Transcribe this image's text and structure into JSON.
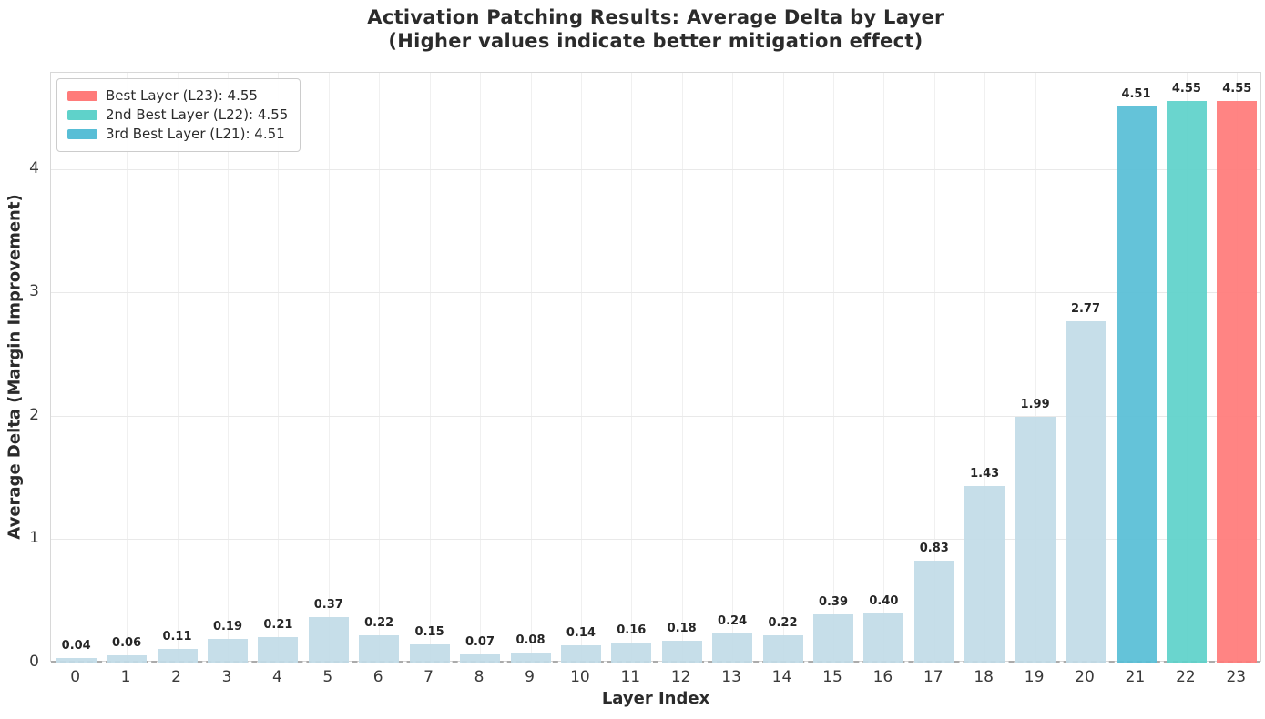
{
  "chart_data": {
    "type": "bar",
    "title": "Activation Patching Results: Average Delta by Layer",
    "subtitle": "(Higher values indicate better mitigation effect)",
    "xlabel": "Layer Index",
    "ylabel": "Average Delta (Margin Improvement)",
    "categories": [
      "0",
      "1",
      "2",
      "3",
      "4",
      "5",
      "6",
      "7",
      "8",
      "9",
      "10",
      "11",
      "12",
      "13",
      "14",
      "15",
      "16",
      "17",
      "18",
      "19",
      "20",
      "21",
      "22",
      "23"
    ],
    "values": [
      0.04,
      0.06,
      0.11,
      0.19,
      0.21,
      0.37,
      0.22,
      0.15,
      0.07,
      0.08,
      0.14,
      0.16,
      0.18,
      0.24,
      0.22,
      0.39,
      0.4,
      0.83,
      1.43,
      1.99,
      2.77,
      4.51,
      4.55,
      4.55
    ],
    "value_labels": [
      "0.04",
      "0.06",
      "0.11",
      "0.19",
      "0.21",
      "0.37",
      "0.22",
      "0.15",
      "0.07",
      "0.08",
      "0.14",
      "0.16",
      "0.18",
      "0.24",
      "0.22",
      "0.39",
      "0.40",
      "0.83",
      "1.43",
      "1.99",
      "2.77",
      "4.51",
      "4.55",
      "4.55"
    ],
    "ylim": [
      0,
      4.78
    ],
    "yticks": [
      "0",
      "1",
      "2",
      "3",
      "4"
    ],
    "grid": true,
    "zero_line": "dashed",
    "legend_position": "upper-left",
    "colors": {
      "default_bar": "#c2dbe7",
      "highlight_bars": {
        "21": "#58bed6",
        "22": "#5fd2ca",
        "23": "#ff7b7a"
      },
      "title_text": "#2b2b2b",
      "tick_text": "#3a3a3a",
      "grid_line": "#e9e9e9"
    },
    "legend": {
      "items": [
        {
          "label": "Best Layer (L23): 4.55",
          "color": "#ff7b7a"
        },
        {
          "label": "2nd Best Layer (L22): 4.55",
          "color": "#5fd2ca"
        },
        {
          "label": "3rd Best Layer (L21): 4.51",
          "color": "#58bed6"
        }
      ]
    }
  }
}
